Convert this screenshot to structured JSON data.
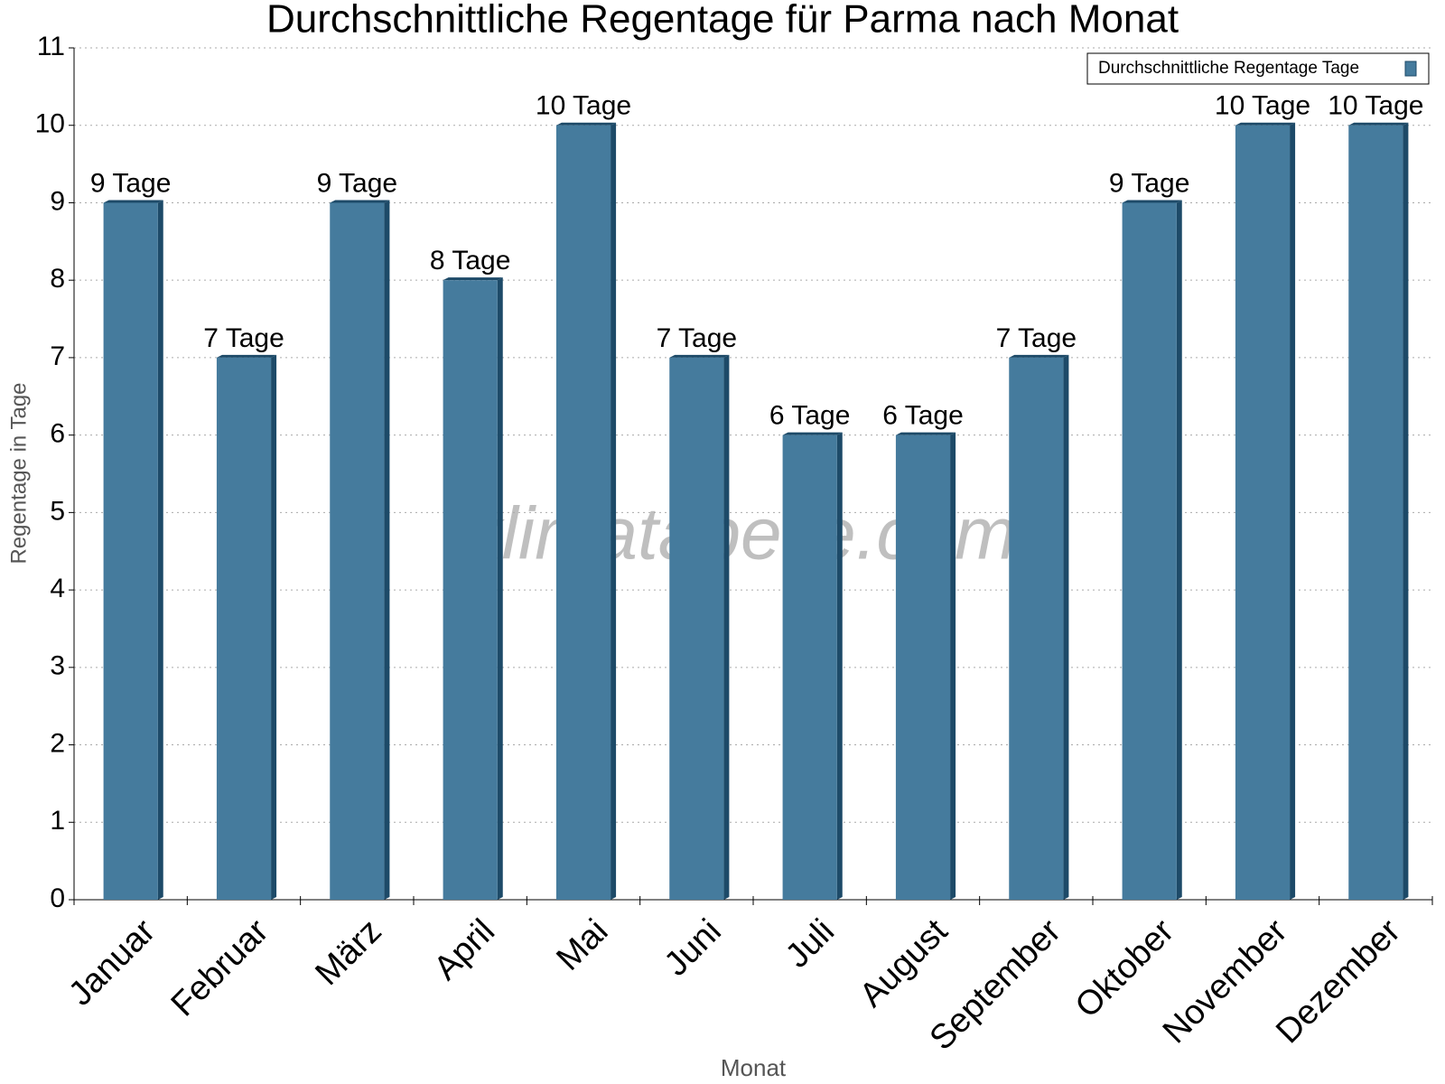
{
  "chart_data": {
    "type": "bar",
    "title": "Durchschnittliche Regentage für Parma nach Monat",
    "x_label": "Monat",
    "y_label": "Regentage in Tage",
    "watermark": "klimatabelle.com",
    "categories": [
      "Januar",
      "Februar",
      "März",
      "April",
      "Mai",
      "Juni",
      "Juli",
      "August",
      "September",
      "Oktober",
      "November",
      "Dezember"
    ],
    "series": [
      {
        "name": "Durchschnittliche Regentage Tage",
        "color": "#457b9d",
        "values": [
          9,
          7,
          9,
          8,
          10,
          7,
          6,
          6,
          7,
          9,
          10,
          10
        ],
        "value_labels": [
          "9 Tage",
          "7 Tage",
          "9 Tage",
          "8 Tage",
          "10 Tage",
          "7 Tage",
          "6 Tage",
          "6 Tage",
          "7 Tage",
          "9 Tage",
          "10 Tage",
          "10 Tage"
        ]
      }
    ],
    "ylim": [
      0,
      11
    ],
    "yticks": [
      0,
      1,
      2,
      3,
      4,
      5,
      6,
      7,
      8,
      9,
      10,
      11
    ],
    "grid": true,
    "legend": "top-right"
  }
}
